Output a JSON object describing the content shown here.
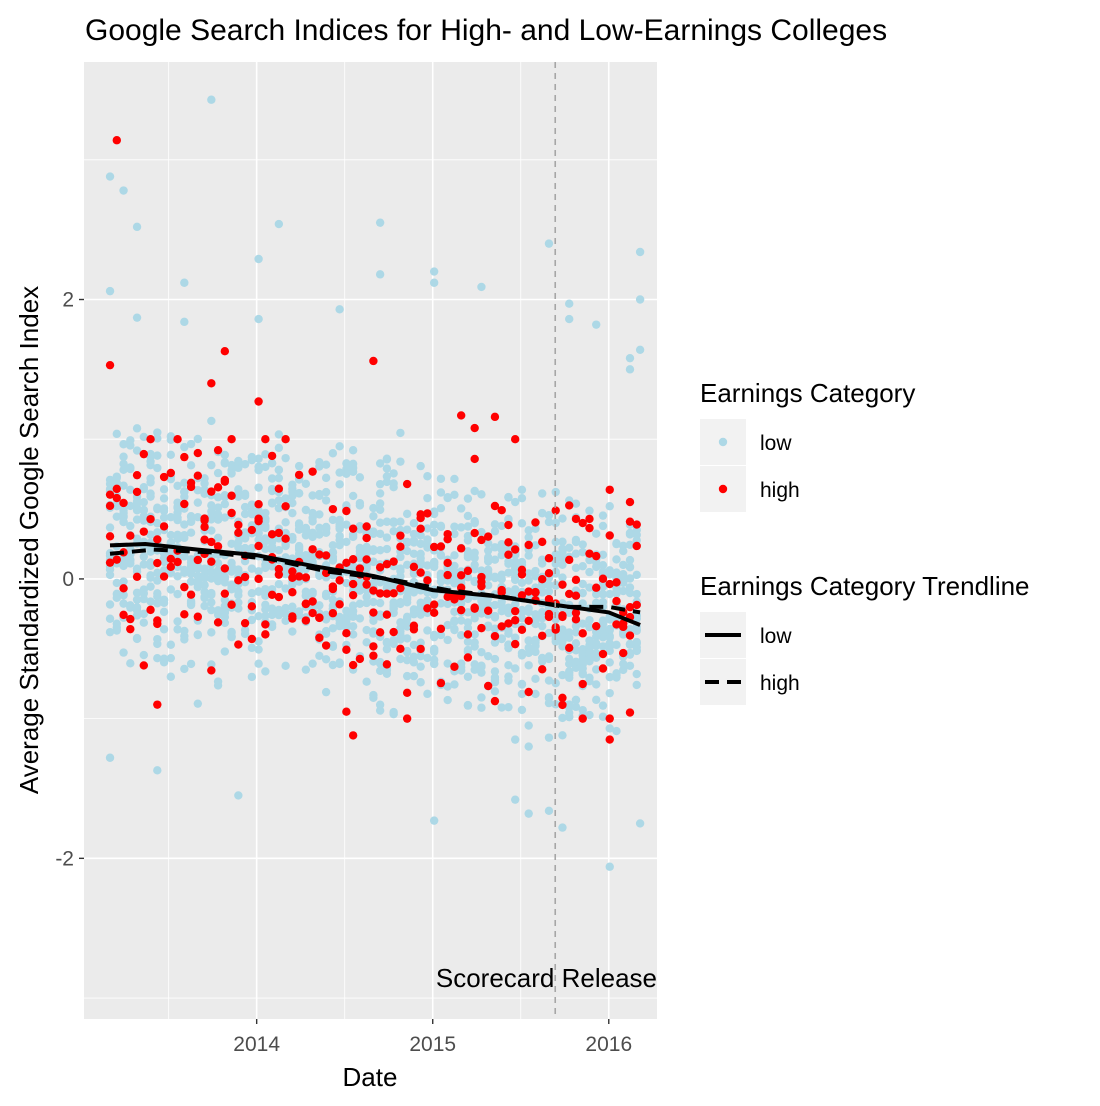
{
  "chart_data": {
    "type": "scatter",
    "title": "Google Search Indices for High- and Low-Earnings Colleges",
    "xlabel": "Date",
    "ylabel": "Average Standardized Google Search Index",
    "xlim": [
      "2013-01-08",
      "2016-04-10"
    ],
    "ylim": [
      -3.15,
      3.7
    ],
    "x_ticks": [
      {
        "date": "2014-01-01",
        "label": "2014"
      },
      {
        "date": "2015-01-01",
        "label": "2015"
      },
      {
        "date": "2016-01-01",
        "label": "2016"
      }
    ],
    "y_ticks": [
      {
        "value": 2,
        "label": "2"
      },
      {
        "value": 0,
        "label": "0"
      },
      {
        "value": -2,
        "label": "-2"
      }
    ],
    "grid": true,
    "background": "#ebebeb",
    "sample_interval_days": 14,
    "sampling_start": "2013-03-03",
    "sampling_end": "2016-03-06",
    "series": [
      {
        "name": "low",
        "color": "#add8e6",
        "point_range": [
          -1.2,
          0.85
        ],
        "extreme_points": [
          {
            "x": "2013-03-03",
            "y": 2.88
          },
          {
            "x": "2013-03-03",
            "y": 2.06
          },
          {
            "x": "2013-03-03",
            "y": -1.28
          },
          {
            "x": "2013-03-31",
            "y": 2.78
          },
          {
            "x": "2013-04-28",
            "y": 2.52
          },
          {
            "x": "2013-04-28",
            "y": 1.87
          },
          {
            "x": "2013-06-09",
            "y": -1.37
          },
          {
            "x": "2013-08-04",
            "y": 2.12
          },
          {
            "x": "2013-08-04",
            "y": 1.84
          },
          {
            "x": "2013-09-29",
            "y": 3.43
          },
          {
            "x": "2013-11-24",
            "y": -1.55
          },
          {
            "x": "2014-01-05",
            "y": 2.29
          },
          {
            "x": "2014-01-05",
            "y": 1.86
          },
          {
            "x": "2014-02-16",
            "y": 2.54
          },
          {
            "x": "2014-06-22",
            "y": 1.93
          },
          {
            "x": "2014-09-14",
            "y": 2.55
          },
          {
            "x": "2014-09-14",
            "y": 2.18
          },
          {
            "x": "2015-01-04",
            "y": 2.2
          },
          {
            "x": "2015-01-04",
            "y": 2.12
          },
          {
            "x": "2015-01-04",
            "y": -1.73
          },
          {
            "x": "2015-04-12",
            "y": 2.09
          },
          {
            "x": "2015-06-21",
            "y": -1.58
          },
          {
            "x": "2015-07-19",
            "y": -1.68
          },
          {
            "x": "2015-08-30",
            "y": 2.4
          },
          {
            "x": "2015-08-30",
            "y": -1.66
          },
          {
            "x": "2015-09-27",
            "y": -1.78
          },
          {
            "x": "2015-10-11",
            "y": 1.97
          },
          {
            "x": "2015-10-11",
            "y": 1.86
          },
          {
            "x": "2015-12-06",
            "y": 1.82
          },
          {
            "x": "2016-01-03",
            "y": -2.06
          },
          {
            "x": "2016-02-14",
            "y": 1.58
          },
          {
            "x": "2016-02-14",
            "y": 1.5
          },
          {
            "x": "2016-03-06",
            "y": 2.34
          },
          {
            "x": "2016-03-06",
            "y": 2.0
          },
          {
            "x": "2016-03-06",
            "y": 1.64
          },
          {
            "x": "2016-03-06",
            "y": -1.75
          }
        ]
      },
      {
        "name": "high",
        "color": "#ff0000",
        "point_range": [
          -1.0,
          1.0
        ],
        "extreme_points": [
          {
            "x": "2013-03-03",
            "y": 1.53
          },
          {
            "x": "2013-03-17",
            "y": 3.14
          },
          {
            "x": "2013-06-09",
            "y": -0.9
          },
          {
            "x": "2013-09-29",
            "y": 1.4
          },
          {
            "x": "2013-10-27",
            "y": 1.63
          },
          {
            "x": "2014-01-05",
            "y": 1.27
          },
          {
            "x": "2014-07-20",
            "y": -1.12
          },
          {
            "x": "2014-08-31",
            "y": 1.56
          },
          {
            "x": "2015-03-01",
            "y": 1.17
          },
          {
            "x": "2015-03-29",
            "y": 1.08
          },
          {
            "x": "2015-05-10",
            "y": 1.16
          },
          {
            "x": "2015-11-08",
            "y": 0.4
          },
          {
            "x": "2016-01-03",
            "y": -1.15
          },
          {
            "x": "2016-02-14",
            "y": 0.55
          }
        ]
      }
    ],
    "trendlines": [
      {
        "name": "low",
        "style": "solid",
        "points": [
          {
            "x": "2013-03-03",
            "y": 0.24
          },
          {
            "x": "2013-05-15",
            "y": 0.25
          },
          {
            "x": "2013-09-01",
            "y": 0.21
          },
          {
            "x": "2014-01-01",
            "y": 0.17
          },
          {
            "x": "2014-05-01",
            "y": 0.09
          },
          {
            "x": "2014-09-01",
            "y": 0.02
          },
          {
            "x": "2015-01-01",
            "y": -0.08
          },
          {
            "x": "2015-05-01",
            "y": -0.12
          },
          {
            "x": "2015-09-01",
            "y": -0.18
          },
          {
            "x": "2016-01-01",
            "y": -0.24
          },
          {
            "x": "2016-03-06",
            "y": -0.33
          }
        ]
      },
      {
        "name": "high",
        "style": "dashed",
        "points": [
          {
            "x": "2013-03-03",
            "y": 0.18
          },
          {
            "x": "2013-06-01",
            "y": 0.21
          },
          {
            "x": "2013-10-01",
            "y": 0.19
          },
          {
            "x": "2014-02-01",
            "y": 0.14
          },
          {
            "x": "2014-06-01",
            "y": 0.05
          },
          {
            "x": "2014-10-01",
            "y": 0.0
          },
          {
            "x": "2015-02-01",
            "y": -0.08
          },
          {
            "x": "2015-06-01",
            "y": -0.13
          },
          {
            "x": "2015-10-01",
            "y": -0.2
          },
          {
            "x": "2016-01-01",
            "y": -0.2
          },
          {
            "x": "2016-03-06",
            "y": -0.24
          }
        ]
      }
    ],
    "reference_line": {
      "date": "2015-09-12",
      "label": "Scorecard Release",
      "style": "dashed",
      "color": "#a6a6a6"
    },
    "legend": {
      "placement": "right",
      "points_title": "Earnings Category",
      "points_entries": [
        {
          "label": "low",
          "color": "#add8e6"
        },
        {
          "label": "high",
          "color": "#ff0000"
        }
      ],
      "lines_title": "Earnings Category Trendline",
      "lines_entries": [
        {
          "label": "low",
          "style": "solid"
        },
        {
          "label": "high",
          "style": "dashed"
        }
      ]
    }
  }
}
